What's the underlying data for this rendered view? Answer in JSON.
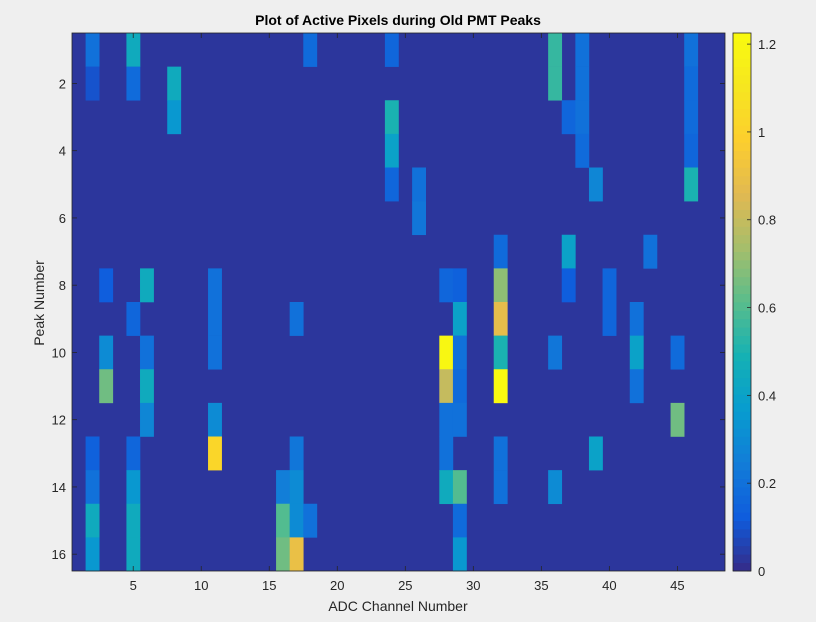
{
  "chart_data": {
    "type": "heatmap",
    "title": "Plot of Active Pixels during Old PMT Peaks",
    "xlabel": "ADC Channel Number",
    "ylabel": "Peak Number",
    "x_range": [
      0.5,
      48.5
    ],
    "y_range": [
      0.5,
      16.5
    ],
    "x_ticks": [
      5,
      10,
      15,
      20,
      25,
      30,
      35,
      40,
      45
    ],
    "y_ticks": [
      2,
      4,
      6,
      8,
      10,
      12,
      14,
      16
    ],
    "y_direction": "reverse",
    "colormap": "parula",
    "color_limits": [
      0,
      1.2253
    ],
    "colorbar_ticks": [
      0,
      0.2,
      0.4,
      0.6,
      0.8,
      1,
      1.2
    ],
    "colorbar_location": "right",
    "background_value": 0.03,
    "cells": [
      [
        2,
        1,
        0.2
      ],
      [
        5,
        1,
        0.45
      ],
      [
        18,
        1,
        0.18
      ],
      [
        24,
        1,
        0.16
      ],
      [
        36,
        1,
        0.55
      ],
      [
        38,
        1,
        0.2
      ],
      [
        46,
        1,
        0.2
      ],
      [
        2,
        2,
        0.1
      ],
      [
        5,
        2,
        0.18
      ],
      [
        8,
        2,
        0.45
      ],
      [
        36,
        2,
        0.55
      ],
      [
        38,
        2,
        0.2
      ],
      [
        46,
        2,
        0.18
      ],
      [
        8,
        3,
        0.35
      ],
      [
        24,
        3,
        0.5
      ],
      [
        37,
        3,
        0.16
      ],
      [
        38,
        3,
        0.2
      ],
      [
        46,
        3,
        0.18
      ],
      [
        24,
        4,
        0.4
      ],
      [
        38,
        4,
        0.18
      ],
      [
        46,
        4,
        0.16
      ],
      [
        24,
        5,
        0.16
      ],
      [
        26,
        5,
        0.2
      ],
      [
        39,
        5,
        0.28
      ],
      [
        46,
        5,
        0.5
      ],
      [
        26,
        6,
        0.22
      ],
      [
        32,
        7,
        0.18
      ],
      [
        37,
        7,
        0.4
      ],
      [
        43,
        7,
        0.2
      ],
      [
        3,
        8,
        0.13
      ],
      [
        6,
        8,
        0.45
      ],
      [
        11,
        8,
        0.2
      ],
      [
        28,
        8,
        0.16
      ],
      [
        29,
        8,
        0.14
      ],
      [
        32,
        8,
        0.7
      ],
      [
        37,
        8,
        0.13
      ],
      [
        40,
        8,
        0.16
      ],
      [
        5,
        9,
        0.16
      ],
      [
        11,
        9,
        0.2
      ],
      [
        17,
        9,
        0.2
      ],
      [
        29,
        9,
        0.4
      ],
      [
        32,
        9,
        0.88
      ],
      [
        40,
        9,
        0.16
      ],
      [
        42,
        9,
        0.2
      ],
      [
        3,
        10,
        0.3
      ],
      [
        6,
        10,
        0.2
      ],
      [
        11,
        10,
        0.2
      ],
      [
        28,
        10,
        1.2
      ],
      [
        29,
        10,
        0.2
      ],
      [
        32,
        10,
        0.5
      ],
      [
        36,
        10,
        0.22
      ],
      [
        42,
        10,
        0.4
      ],
      [
        45,
        10,
        0.18
      ],
      [
        3,
        11,
        0.65
      ],
      [
        6,
        11,
        0.45
      ],
      [
        28,
        11,
        0.8
      ],
      [
        29,
        11,
        0.18
      ],
      [
        32,
        11,
        1.22
      ],
      [
        42,
        11,
        0.2
      ],
      [
        6,
        12,
        0.28
      ],
      [
        11,
        12,
        0.3
      ],
      [
        28,
        12,
        0.2
      ],
      [
        29,
        12,
        0.2
      ],
      [
        45,
        12,
        0.65
      ],
      [
        2,
        13,
        0.14
      ],
      [
        5,
        13,
        0.16
      ],
      [
        11,
        13,
        1.02
      ],
      [
        17,
        13,
        0.22
      ],
      [
        28,
        13,
        0.2
      ],
      [
        32,
        13,
        0.2
      ],
      [
        39,
        13,
        0.4
      ],
      [
        2,
        14,
        0.2
      ],
      [
        5,
        14,
        0.35
      ],
      [
        16,
        14,
        0.25
      ],
      [
        17,
        14,
        0.3
      ],
      [
        28,
        14,
        0.45
      ],
      [
        29,
        14,
        0.6
      ],
      [
        32,
        14,
        0.2
      ],
      [
        36,
        14,
        0.3
      ],
      [
        2,
        15,
        0.45
      ],
      [
        5,
        15,
        0.45
      ],
      [
        16,
        15,
        0.6
      ],
      [
        17,
        15,
        0.3
      ],
      [
        18,
        15,
        0.2
      ],
      [
        29,
        15,
        0.18
      ],
      [
        2,
        16,
        0.35
      ],
      [
        5,
        16,
        0.45
      ],
      [
        16,
        16,
        0.65
      ],
      [
        17,
        16,
        0.9
      ],
      [
        29,
        16,
        0.35
      ]
    ]
  }
}
